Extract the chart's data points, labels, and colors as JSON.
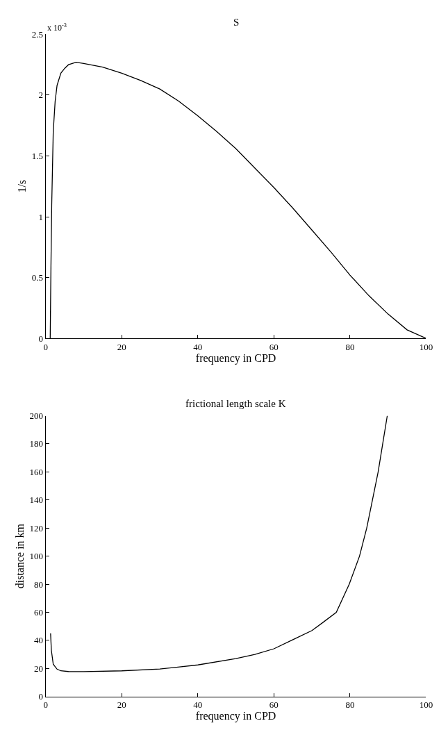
{
  "chart_data": [
    {
      "type": "line",
      "title": "S",
      "xlabel": "frequency in CPD",
      "ylabel": "1/s",
      "color": "#000000",
      "x": [
        1.2,
        1.4,
        1.6,
        2,
        2.5,
        3,
        4,
        5,
        6,
        8,
        10,
        15,
        20,
        25,
        30,
        35,
        40,
        45,
        50,
        55,
        60,
        65,
        70,
        75,
        80,
        85,
        90,
        95,
        100
      ],
      "values": [
        0,
        0.6,
        1.1,
        1.7,
        1.95,
        2.08,
        2.18,
        2.22,
        2.25,
        2.27,
        2.26,
        2.23,
        2.18,
        2.12,
        2.05,
        1.95,
        1.83,
        1.7,
        1.56,
        1.4,
        1.24,
        1.07,
        0.89,
        0.71,
        0.52,
        0.35,
        0.2,
        0.07,
        0
      ],
      "xlim": [
        0,
        100
      ],
      "ylim": [
        0,
        2.5
      ],
      "xticks": [
        0,
        20,
        40,
        60,
        80,
        100
      ],
      "yticks": [
        0,
        0.5,
        1,
        1.5,
        2,
        2.5
      ],
      "annotations": [
        "x 10$^{-3}$"
      ]
    },
    {
      "type": "line",
      "title": "frictional length scale K",
      "xlabel": "frequency in CPD",
      "ylabel": "distance in km",
      "color": "#000000",
      "x": [
        1.3,
        1.5,
        2,
        3,
        4,
        6,
        10,
        20,
        30,
        40,
        50,
        55,
        60,
        65,
        70,
        73,
        76.4,
        79.8,
        82.5,
        84.4,
        85.9,
        87.4,
        88.6,
        89.8
      ],
      "values": [
        45,
        33,
        23,
        19.5,
        18.3,
        17.8,
        17.7,
        18.3,
        19.6,
        22.5,
        27,
        30,
        34,
        40.5,
        47,
        53,
        60,
        80,
        100,
        120,
        140,
        160,
        180,
        200
      ],
      "xlim": [
        0,
        100
      ],
      "ylim": [
        0,
        200
      ],
      "xticks": [
        0,
        20,
        40,
        60,
        80,
        100
      ],
      "yticks": [
        0,
        20,
        40,
        60,
        80,
        100,
        120,
        140,
        160,
        180,
        200
      ]
    }
  ]
}
